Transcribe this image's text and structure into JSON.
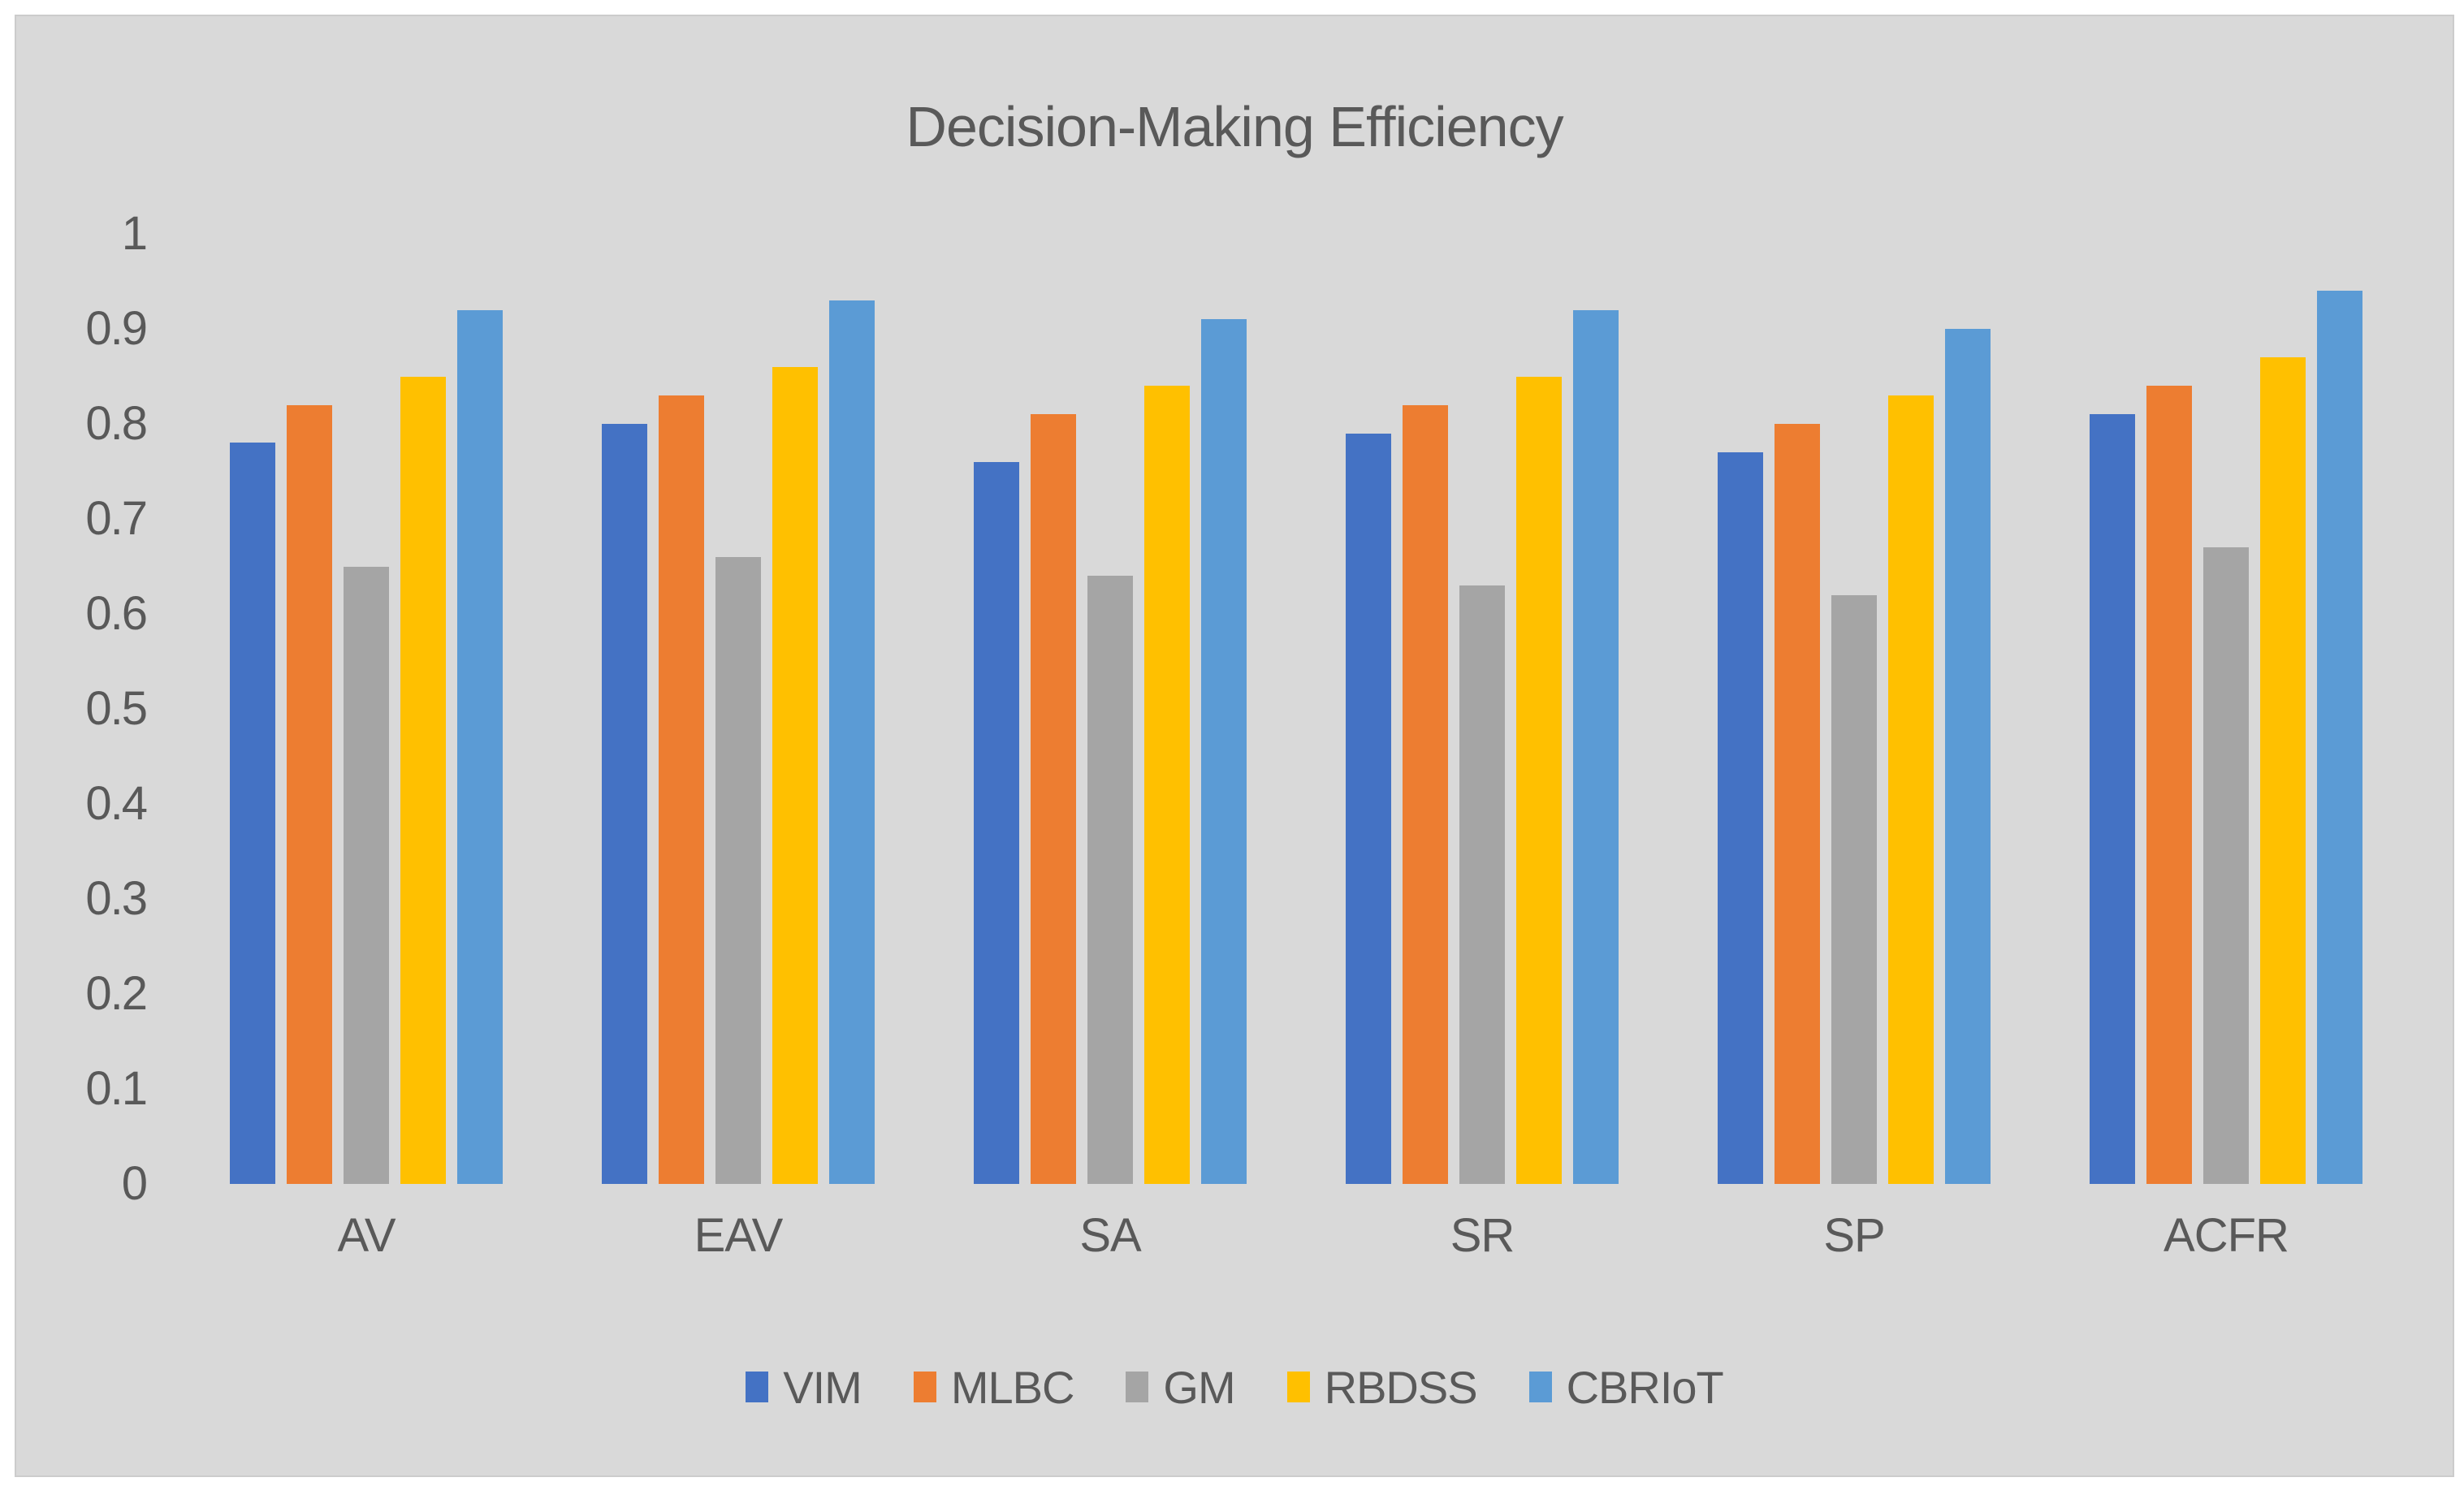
{
  "chart_data": {
    "type": "bar",
    "title": "Decision-Making Efficiency",
    "categories": [
      "AV",
      "EAV",
      "SA",
      "SR",
      "SP",
      "ACFR"
    ],
    "series": [
      {
        "name": "VIM",
        "color": "#4472C4",
        "values": [
          0.78,
          0.8,
          0.76,
          0.79,
          0.77,
          0.81
        ]
      },
      {
        "name": "MLBC",
        "color": "#ED7D31",
        "values": [
          0.82,
          0.83,
          0.81,
          0.82,
          0.8,
          0.84
        ]
      },
      {
        "name": "GM",
        "color": "#A5A5A5",
        "values": [
          0.65,
          0.66,
          0.64,
          0.63,
          0.62,
          0.67
        ]
      },
      {
        "name": "RBDSS",
        "color": "#FFC000",
        "values": [
          0.85,
          0.86,
          0.84,
          0.85,
          0.83,
          0.87
        ]
      },
      {
        "name": "CBRIoT",
        "color": "#5B9BD5",
        "values": [
          0.92,
          0.93,
          0.91,
          0.92,
          0.9,
          0.94
        ]
      }
    ],
    "y_axis": {
      "min": 0,
      "max": 1,
      "step": 0.1,
      "tick_labels": [
        "0",
        "0.1",
        "0.2",
        "0.3",
        "0.4",
        "0.5",
        "0.6",
        "0.7",
        "0.8",
        "0.9",
        "1"
      ]
    },
    "xlabel": "",
    "ylabel": "",
    "grid": false,
    "legend_position": "bottom",
    "colors": {
      "page_background": "#FFFFFF",
      "plot_background": "#D9D9D9",
      "text": "#595959"
    }
  }
}
